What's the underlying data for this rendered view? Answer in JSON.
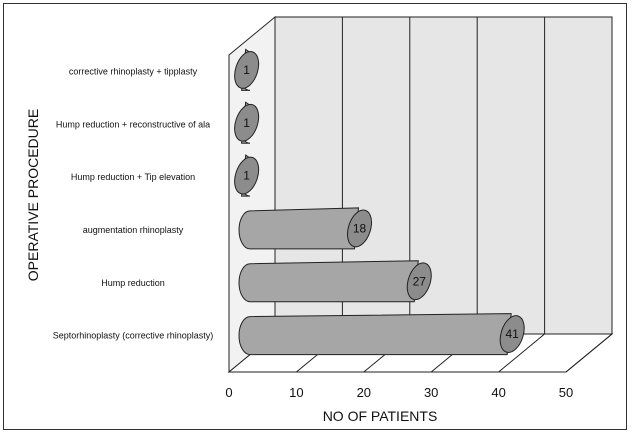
{
  "chart_data": {
    "type": "bar",
    "orientation": "horizontal",
    "style": "3d-cylinder",
    "categories": [
      "corrective rhinoplasty + tipplasty",
      "Hump reduction + reconstructive of ala",
      "Hump reduction + Tip elevation",
      "augmentation rhinoplasty",
      "Hump reduction",
      "Septorhinoplasty (corrective rhinoplasty)"
    ],
    "values": [
      1,
      1,
      1,
      18,
      27,
      41
    ],
    "value_labels": [
      "1",
      "1",
      "1",
      "18",
      "27",
      "41"
    ],
    "xlabel": "NO OF PATIENTS",
    "ylabel": "OPERATIVE PROCEDURE",
    "xlim": [
      0,
      50
    ],
    "xticks": [
      "0",
      "10",
      "20",
      "30",
      "40",
      "50"
    ],
    "grid": true,
    "colors": {
      "bar_fill": "#a6a6a6",
      "bar_cap": "#8c8c8c",
      "wall": "#e6e6e6",
      "floor": "#ffffff",
      "stroke": "#222222"
    }
  }
}
